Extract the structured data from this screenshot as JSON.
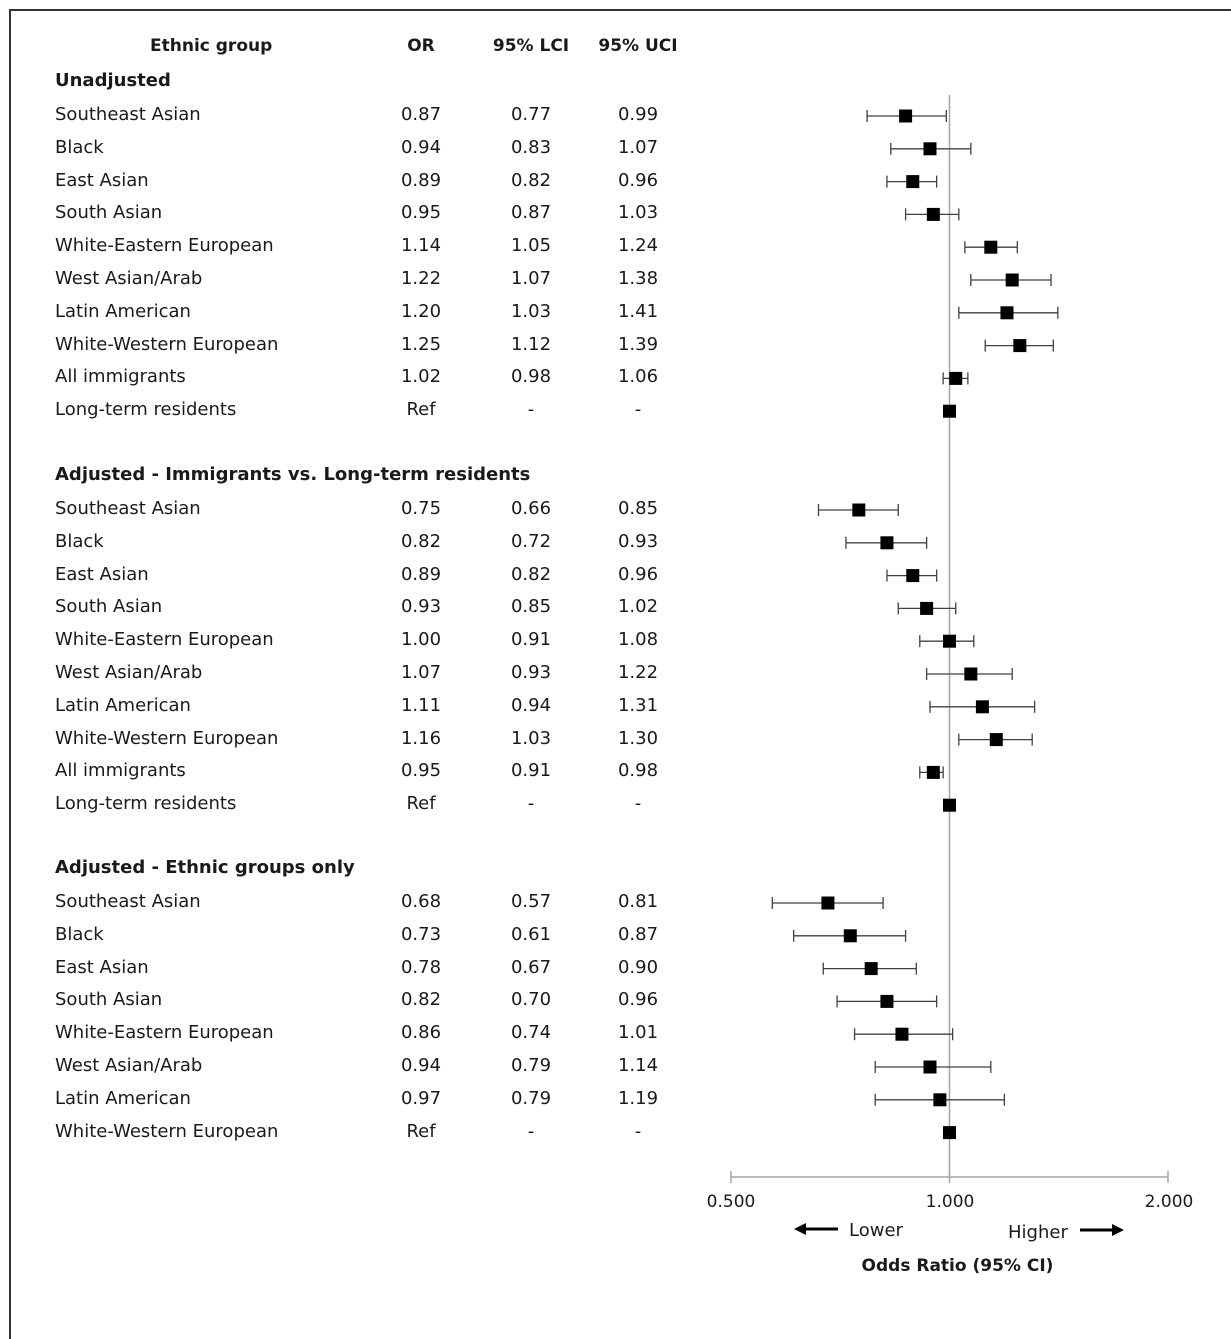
{
  "columns": {
    "group": "Ethnic group",
    "or": "OR",
    "lci": "95% LCI",
    "uci": "95% UCI"
  },
  "sections": [
    {
      "title": "Unadjusted",
      "rows": [
        {
          "label": "Southeast Asian",
          "or": "0.87",
          "lci": "0.77",
          "uci": "0.99"
        },
        {
          "label": "Black",
          "or": "0.94",
          "lci": "0.83",
          "uci": "1.07"
        },
        {
          "label": "East Asian",
          "or": "0.89",
          "lci": "0.82",
          "uci": "0.96"
        },
        {
          "label": "South Asian",
          "or": "0.95",
          "lci": "0.87",
          "uci": "1.03"
        },
        {
          "label": "White-Eastern European",
          "or": "1.14",
          "lci": "1.05",
          "uci": "1.24"
        },
        {
          "label": "West Asian/Arab",
          "or": "1.22",
          "lci": "1.07",
          "uci": "1.38"
        },
        {
          "label": "Latin American",
          "or": "1.20",
          "lci": "1.03",
          "uci": "1.41"
        },
        {
          "label": "White-Western European",
          "or": "1.25",
          "lci": "1.12",
          "uci": "1.39"
        },
        {
          "label": "All immigrants",
          "or": "1.02",
          "lci": "0.98",
          "uci": "1.06"
        },
        {
          "label": "Long-term residents",
          "or": "Ref",
          "lci": "-",
          "uci": "-"
        }
      ]
    },
    {
      "title": "Adjusted - Immigrants vs. Long-term residents",
      "rows": [
        {
          "label": "Southeast Asian",
          "or": "0.75",
          "lci": "0.66",
          "uci": "0.85"
        },
        {
          "label": "Black",
          "or": "0.82",
          "lci": "0.72",
          "uci": "0.93"
        },
        {
          "label": "East Asian",
          "or": "0.89",
          "lci": "0.82",
          "uci": "0.96"
        },
        {
          "label": "South Asian",
          "or": "0.93",
          "lci": "0.85",
          "uci": "1.02"
        },
        {
          "label": "White-Eastern European",
          "or": "1.00",
          "lci": "0.91",
          "uci": "1.08"
        },
        {
          "label": "West Asian/Arab",
          "or": "1.07",
          "lci": "0.93",
          "uci": "1.22"
        },
        {
          "label": "Latin American",
          "or": "1.11",
          "lci": "0.94",
          "uci": "1.31"
        },
        {
          "label": "White-Western European",
          "or": "1.16",
          "lci": "1.03",
          "uci": "1.30"
        },
        {
          "label": "All immigrants",
          "or": "0.95",
          "lci": "0.91",
          "uci": "0.98"
        },
        {
          "label": "Long-term residents",
          "or": "Ref",
          "lci": "-",
          "uci": "-"
        }
      ]
    },
    {
      "title": "Adjusted - Ethnic groups only",
      "rows": [
        {
          "label": "Southeast Asian",
          "or": "0.68",
          "lci": "0.57",
          "uci": "0.81"
        },
        {
          "label": "Black",
          "or": "0.73",
          "lci": "0.61",
          "uci": "0.87"
        },
        {
          "label": "East Asian",
          "or": "0.78",
          "lci": "0.67",
          "uci": "0.90"
        },
        {
          "label": "South Asian",
          "or": "0.82",
          "lci": "0.70",
          "uci": "0.96"
        },
        {
          "label": "White-Eastern European",
          "or": "0.86",
          "lci": "0.74",
          "uci": "1.01"
        },
        {
          "label": "West Asian/Arab",
          "or": "0.94",
          "lci": "0.79",
          "uci": "1.14"
        },
        {
          "label": "Latin American",
          "or": "0.97",
          "lci": "0.79",
          "uci": "1.19"
        },
        {
          "label": "White-Western European",
          "or": "Ref",
          "lci": "-",
          "uci": "-"
        }
      ]
    }
  ],
  "chart_data": {
    "type": "forest",
    "xlabel": "Odds Ratio (95% CI)",
    "xscale": "log2",
    "xlim": [
      0.5,
      2.0
    ],
    "xticks": [
      "0.500",
      "1.000",
      "2.000"
    ],
    "reference_line": 1.0,
    "direction_labels": {
      "lower": "Lower",
      "higher": "Higher"
    },
    "colors": {
      "marker": "#000000",
      "reference_line": "#a6a6a6",
      "axis": "#a6a6a6",
      "whisker": "#404040"
    }
  }
}
